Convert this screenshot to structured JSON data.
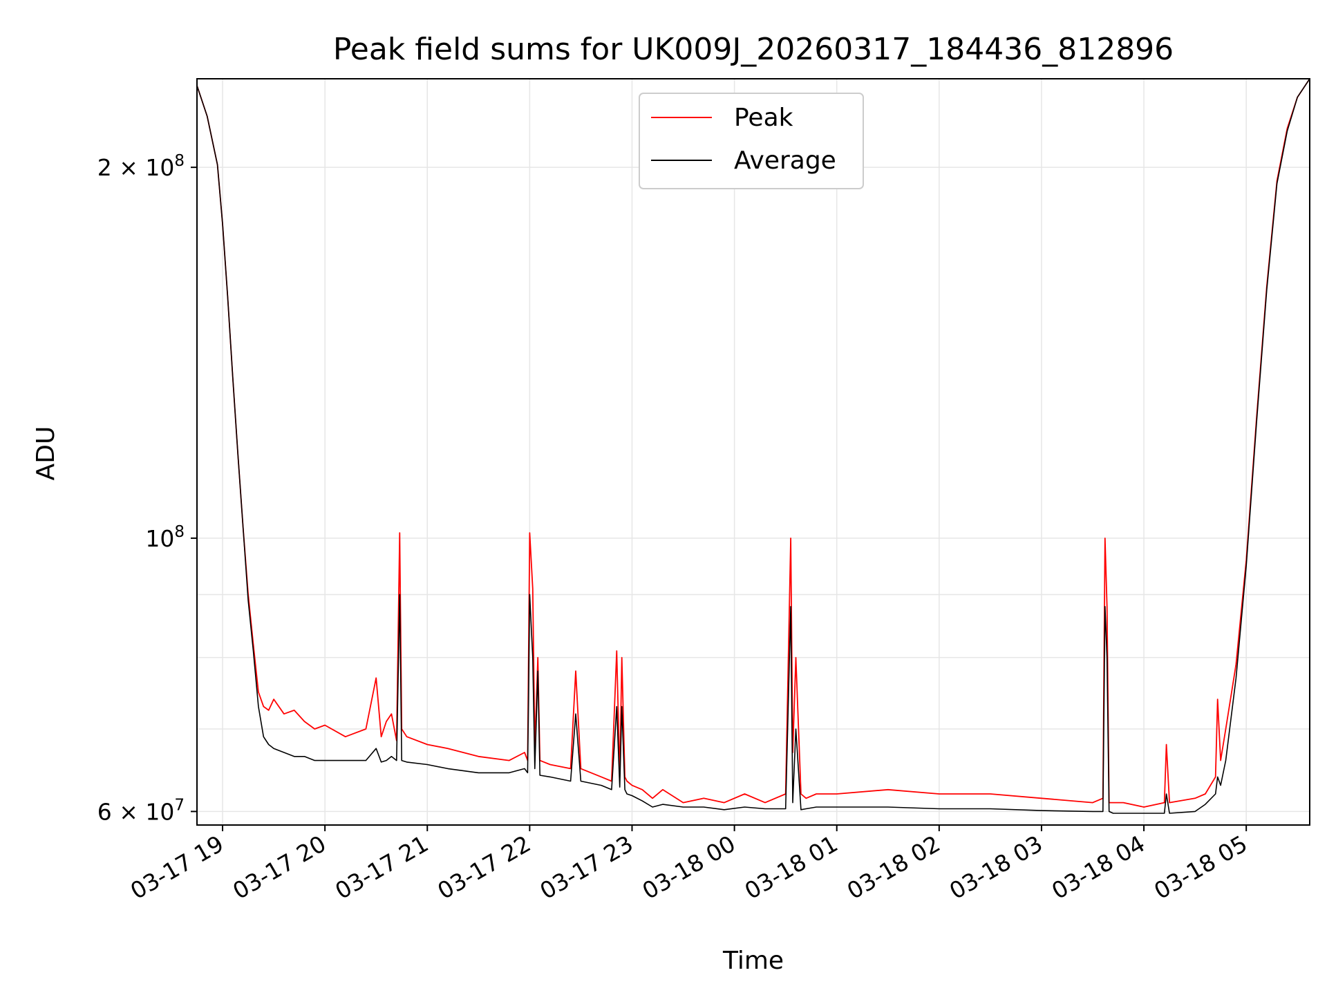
{
  "chart_data": {
    "type": "line",
    "title": "Peak field sums for UK009J_20260317_184436_812896",
    "xlabel": "Time",
    "ylabel": "ADU",
    "yscale": "log",
    "grid": true,
    "legend_placement": "upper center",
    "x_tick_labels": [
      "03-17 19",
      "03-17 20",
      "03-17 21",
      "03-17 22",
      "03-17 23",
      "03-18 00",
      "03-18 01",
      "03-18 02",
      "03-18 03",
      "03-18 04",
      "03-18 05"
    ],
    "x_tick_hours": [
      19,
      20,
      21,
      22,
      23,
      24,
      25,
      26,
      27,
      28,
      29
    ],
    "y_ticks": [
      {
        "value": 60000000,
        "mant": "6",
        "exp": "7",
        "major": false
      },
      {
        "value": 100000000,
        "mant": "",
        "exp": "8",
        "major": true
      },
      {
        "value": 200000000,
        "mant": "2",
        "exp": "8",
        "major": false
      }
    ],
    "y_minor_gridlines": [
      70000000,
      80000000,
      90000000,
      300000000
    ],
    "xlim_hours": [
      18.75,
      29.62
    ],
    "ylim": [
      58500000,
      236000000
    ],
    "series": [
      {
        "name": "Peak",
        "color": "#ff0000",
        "x_hours": [
          18.75,
          18.85,
          18.95,
          19.0,
          19.05,
          19.1,
          19.15,
          19.2,
          19.25,
          19.3,
          19.35,
          19.4,
          19.45,
          19.5,
          19.6,
          19.7,
          19.8,
          19.9,
          20.0,
          20.2,
          20.4,
          20.5,
          20.55,
          20.6,
          20.65,
          20.7,
          20.73,
          20.75,
          20.8,
          21.0,
          21.2,
          21.5,
          21.8,
          21.95,
          21.98,
          22.0,
          22.03,
          22.05,
          22.08,
          22.1,
          22.2,
          22.4,
          22.45,
          22.5,
          22.7,
          22.8,
          22.85,
          22.88,
          22.9,
          22.93,
          22.95,
          23.0,
          23.1,
          23.2,
          23.3,
          23.5,
          23.7,
          23.9,
          24.1,
          24.3,
          24.5,
          24.55,
          24.57,
          24.6,
          24.65,
          24.7,
          24.8,
          25.0,
          25.5,
          26.0,
          26.5,
          27.0,
          27.5,
          27.6,
          27.62,
          27.64,
          27.66,
          27.7,
          27.8,
          28.0,
          28.2,
          28.22,
          28.25,
          28.5,
          28.6,
          28.7,
          28.72,
          28.75,
          28.8,
          28.9,
          29.0,
          29.1,
          29.2,
          29.3,
          29.4,
          29.5,
          29.62
        ],
        "values": [
          233000000,
          220000000,
          201000000,
          180000000,
          157000000,
          135000000,
          117000000,
          102000000,
          90000000,
          82000000,
          75000000,
          73000000,
          72500000,
          74000000,
          72000000,
          72500000,
          71000000,
          70000000,
          70500000,
          69000000,
          70000000,
          77000000,
          69000000,
          71000000,
          72000000,
          68500000,
          101000000,
          70000000,
          69000000,
          68000000,
          67500000,
          66500000,
          66000000,
          67000000,
          66000000,
          101000000,
          91000000,
          67500000,
          80000000,
          66000000,
          65500000,
          65000000,
          78000000,
          65000000,
          64000000,
          63500000,
          81000000,
          64000000,
          80000000,
          64000000,
          63500000,
          63000000,
          62500000,
          61500000,
          62500000,
          61000000,
          61500000,
          61000000,
          62000000,
          61000000,
          62000000,
          100000000,
          67000000,
          80000000,
          62000000,
          61500000,
          62000000,
          62000000,
          62500000,
          62000000,
          62000000,
          61500000,
          61000000,
          61500000,
          100000000,
          88000000,
          61000000,
          61000000,
          61000000,
          60500000,
          61000000,
          68000000,
          61000000,
          61500000,
          62000000,
          64000000,
          74000000,
          66000000,
          70000000,
          79000000,
          96000000,
          125000000,
          160000000,
          195000000,
          215000000,
          228000000,
          236000000
        ]
      },
      {
        "name": "Average",
        "color": "#000000",
        "x_hours": [
          18.75,
          18.85,
          18.95,
          19.0,
          19.05,
          19.1,
          19.15,
          19.2,
          19.25,
          19.3,
          19.35,
          19.4,
          19.45,
          19.5,
          19.6,
          19.7,
          19.8,
          19.9,
          20.0,
          20.2,
          20.4,
          20.5,
          20.55,
          20.6,
          20.65,
          20.7,
          20.73,
          20.75,
          20.8,
          21.0,
          21.2,
          21.5,
          21.8,
          21.95,
          21.98,
          22.0,
          22.03,
          22.05,
          22.08,
          22.1,
          22.2,
          22.4,
          22.45,
          22.5,
          22.7,
          22.8,
          22.85,
          22.88,
          22.9,
          22.93,
          22.95,
          23.0,
          23.1,
          23.2,
          23.3,
          23.5,
          23.7,
          23.9,
          24.1,
          24.3,
          24.5,
          24.55,
          24.57,
          24.6,
          24.65,
          24.7,
          24.8,
          25.0,
          25.5,
          26.0,
          26.5,
          27.0,
          27.5,
          27.6,
          27.62,
          27.64,
          27.66,
          27.7,
          27.8,
          28.0,
          28.2,
          28.22,
          28.25,
          28.5,
          28.6,
          28.7,
          28.72,
          28.75,
          28.8,
          28.9,
          29.0,
          29.1,
          29.2,
          29.3,
          29.4,
          29.5,
          29.62
        ],
        "values": [
          233000000,
          220000000,
          201000000,
          180000000,
          157000000,
          135000000,
          117000000,
          102000000,
          89000000,
          81000000,
          73000000,
          69000000,
          68000000,
          67500000,
          67000000,
          66500000,
          66500000,
          66000000,
          66000000,
          66000000,
          66000000,
          67500000,
          65800000,
          66000000,
          66500000,
          66000000,
          90000000,
          66000000,
          65800000,
          65500000,
          65000000,
          64500000,
          64500000,
          65000000,
          64500000,
          90000000,
          80000000,
          65000000,
          78000000,
          64200000,
          64000000,
          63500000,
          72000000,
          63500000,
          63000000,
          62500000,
          73000000,
          62800000,
          73000000,
          62500000,
          62000000,
          61800000,
          61200000,
          60500000,
          60800000,
          60500000,
          60500000,
          60200000,
          60500000,
          60300000,
          60300000,
          88000000,
          61000000,
          70000000,
          60200000,
          60300000,
          60500000,
          60500000,
          60500000,
          60300000,
          60300000,
          60100000,
          60000000,
          60000000,
          88000000,
          80000000,
          60000000,
          59800000,
          59800000,
          59800000,
          59800000,
          62000000,
          59800000,
          60000000,
          60800000,
          62000000,
          64000000,
          63000000,
          66000000,
          77000000,
          95000000,
          124000000,
          159000000,
          194000000,
          214000000,
          228000000,
          236000000
        ]
      }
    ]
  }
}
